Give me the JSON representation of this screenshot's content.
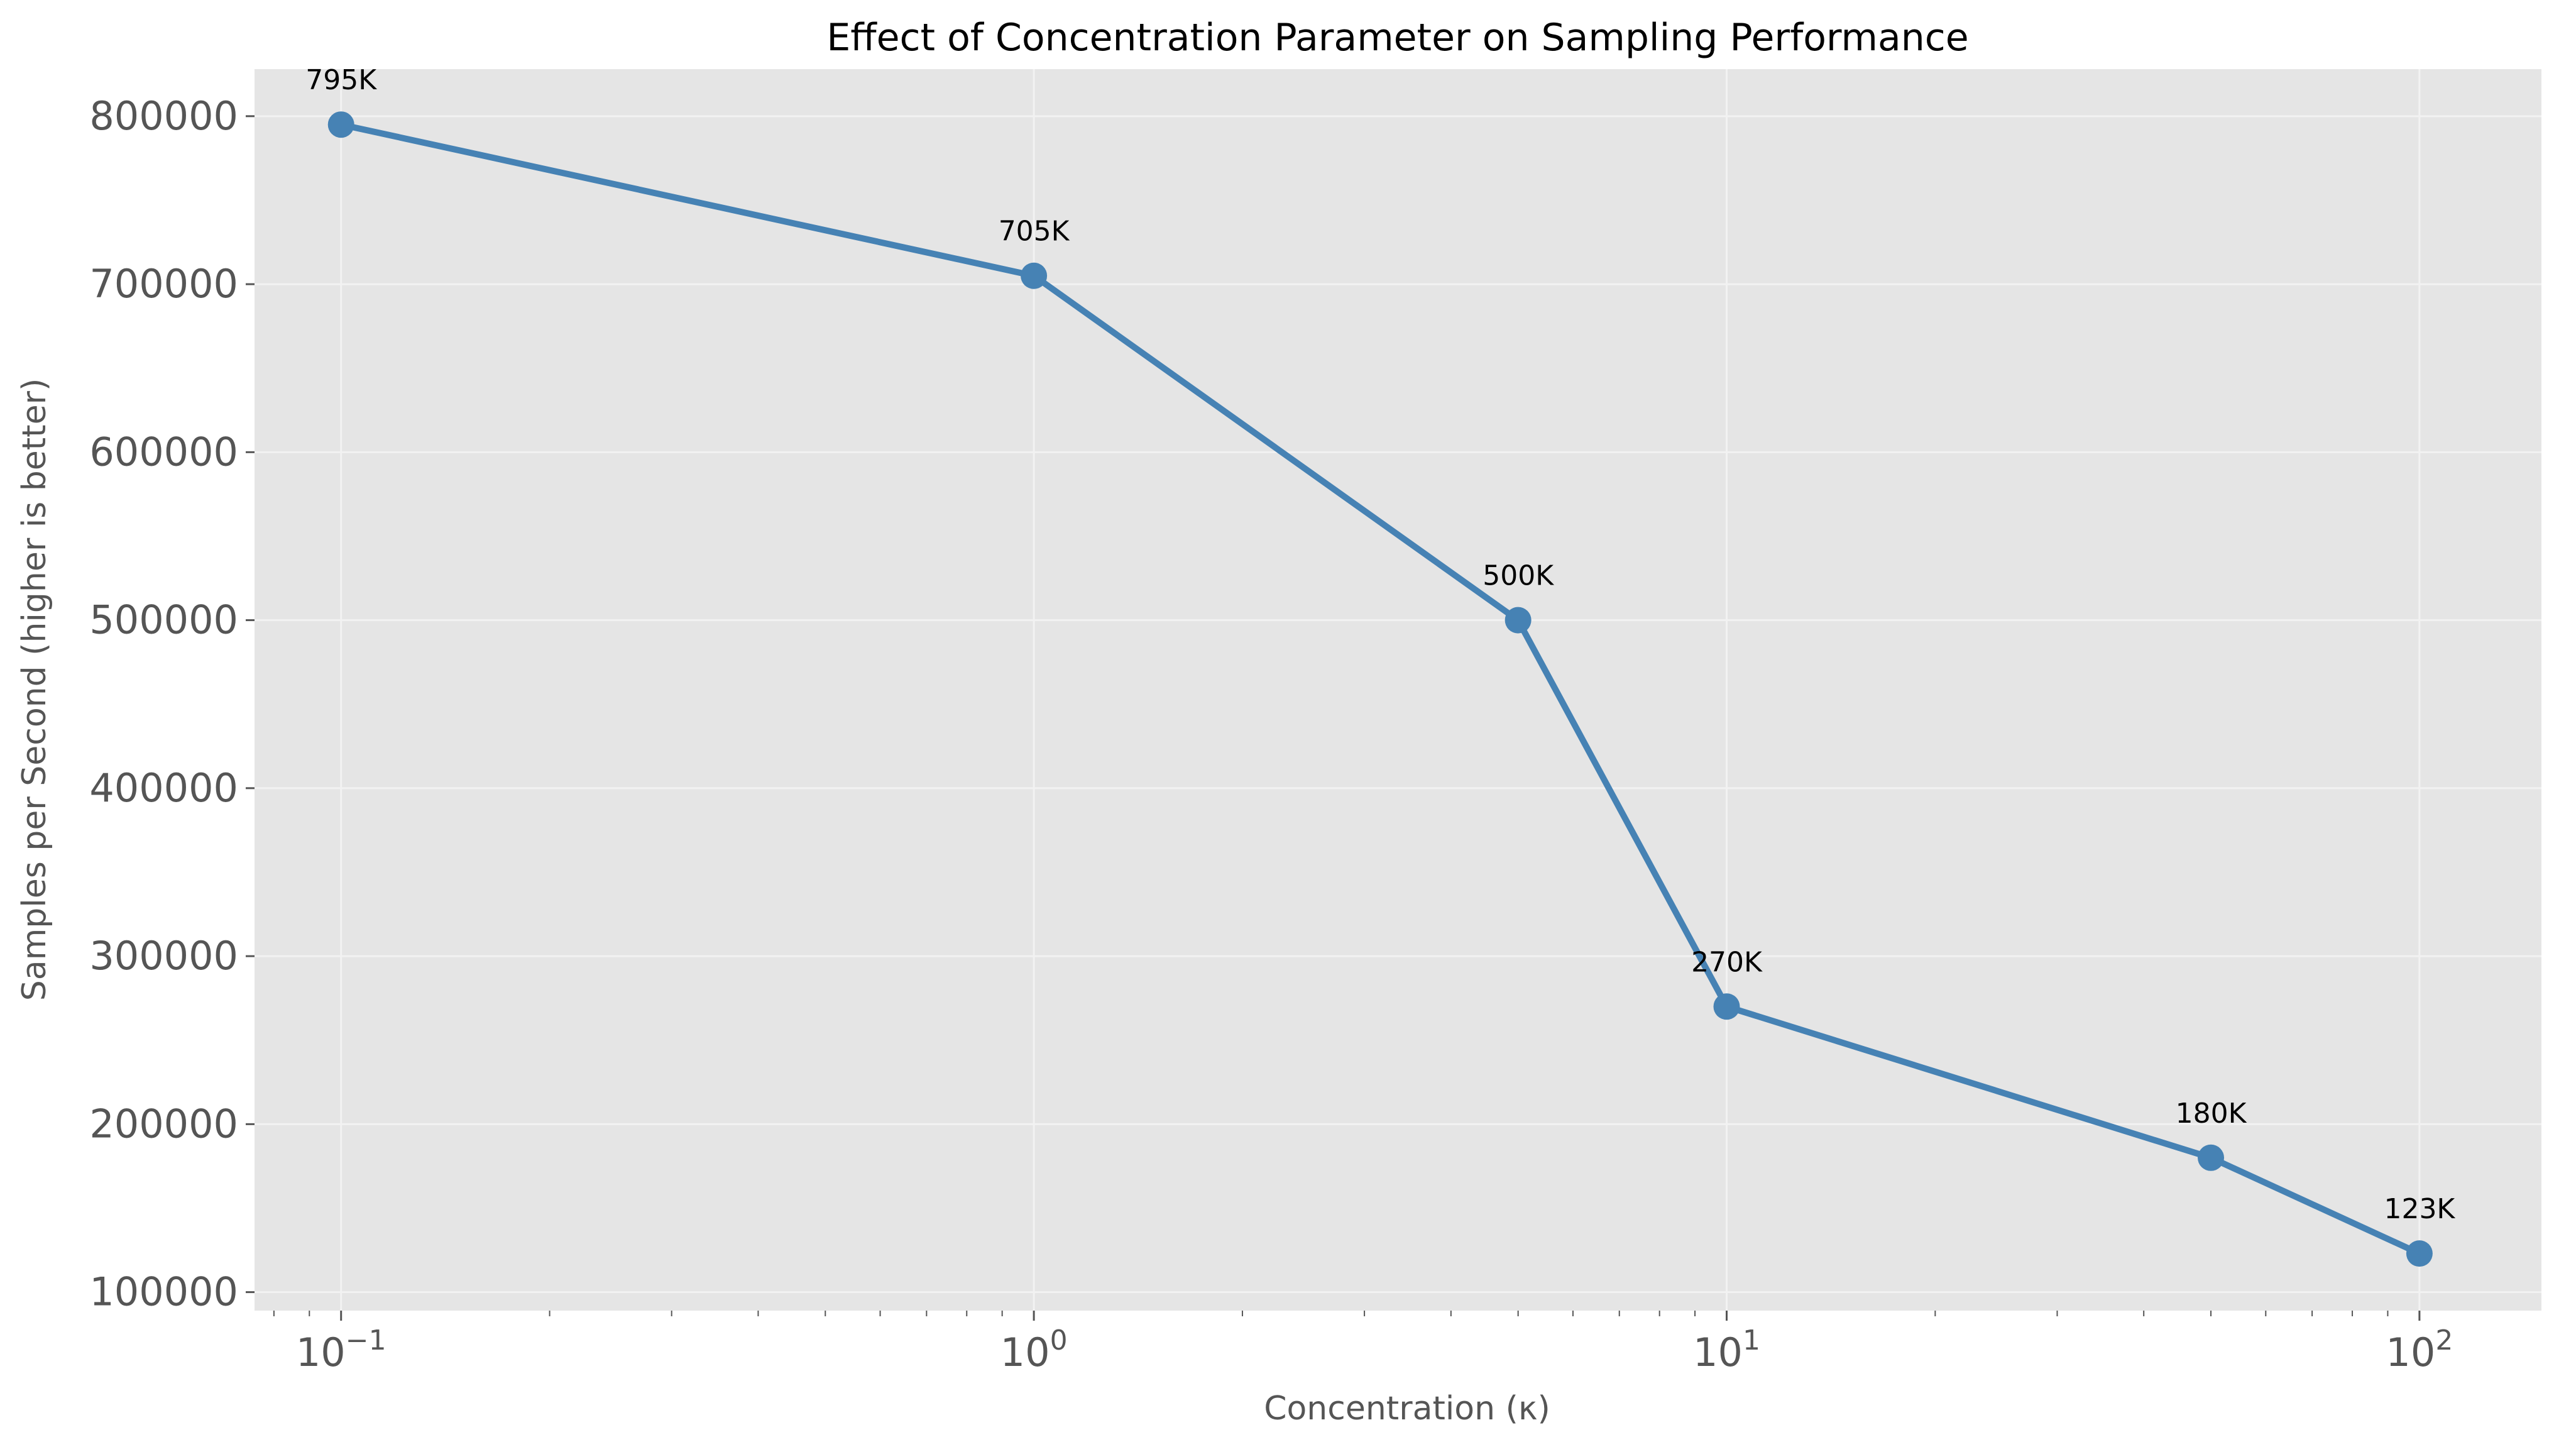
{
  "chart_data": {
    "type": "line",
    "title": "Effect of Concentration Parameter on Sampling Performance",
    "xlabel": "Concentration (κ)",
    "ylabel": "Samples per Second (higher is better)",
    "x_scale": "log",
    "xlim": [
      0.075,
      150
    ],
    "ylim": [
      89000,
      828000
    ],
    "grid": true,
    "legend": "none",
    "colors": {
      "background": "#e5e5e5",
      "grid": "#f2f2f2",
      "line": "#4682b4",
      "tick": "#555555"
    },
    "x_ticks": [
      {
        "value": 0.1,
        "base": "10",
        "exp": "−1"
      },
      {
        "value": 1,
        "base": "10",
        "exp": "0"
      },
      {
        "value": 10,
        "base": "10",
        "exp": "1"
      },
      {
        "value": 100,
        "base": "10",
        "exp": "2"
      }
    ],
    "y_ticks": [
      {
        "value": 100000,
        "label": "100000"
      },
      {
        "value": 200000,
        "label": "200000"
      },
      {
        "value": 300000,
        "label": "300000"
      },
      {
        "value": 400000,
        "label": "400000"
      },
      {
        "value": 500000,
        "label": "500000"
      },
      {
        "value": 600000,
        "label": "600000"
      },
      {
        "value": 700000,
        "label": "700000"
      },
      {
        "value": 800000,
        "label": "800000"
      }
    ],
    "series": [
      {
        "x": [
          0.1,
          1,
          5,
          10,
          50,
          100
        ],
        "y": [
          795000,
          705000,
          500000,
          270000,
          180000,
          123000
        ],
        "labels": [
          "795K",
          "705K",
          "500K",
          "270K",
          "180K",
          "123K"
        ]
      }
    ]
  }
}
